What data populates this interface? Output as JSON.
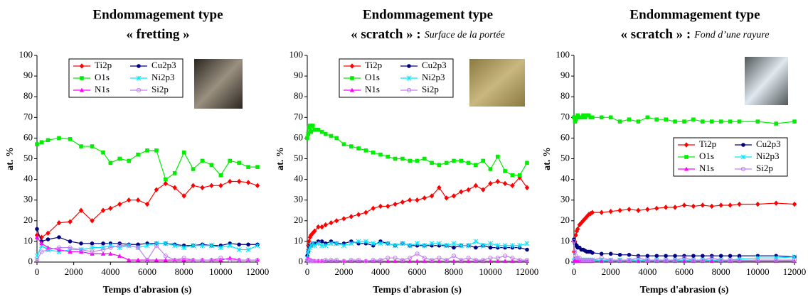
{
  "chart_data": [
    {
      "type": "line",
      "title": "Endommagement type",
      "subtitle": "« fretting »",
      "xlabel": "Temps d'abrasion (s)",
      "ylabel": "at. %",
      "xlim": [
        0,
        12000
      ],
      "ylim": [
        0,
        100
      ],
      "xticks": [
        0,
        2000,
        4000,
        6000,
        8000,
        10000,
        12000
      ],
      "yticks": [
        0,
        10,
        20,
        30,
        40,
        50,
        60,
        70,
        80,
        90,
        100
      ],
      "legend": "upper left",
      "x": [
        0,
        250,
        600,
        1200,
        1800,
        2400,
        3000,
        3600,
        4000,
        4500,
        5000,
        5500,
        6000,
        6500,
        7000,
        7500,
        8000,
        8500,
        9000,
        9500,
        10000,
        10500,
        11000,
        11500,
        12000
      ],
      "series": [
        {
          "name": "Ti2p",
          "color": "#ff0000",
          "marker": "diamond",
          "values": [
            13,
            12,
            14,
            19,
            19.5,
            25,
            20,
            25,
            26,
            28,
            30,
            30,
            28,
            35,
            38,
            36,
            32,
            37,
            36,
            37,
            37,
            39,
            39,
            38.5,
            37
          ]
        },
        {
          "name": "Cu2p3",
          "color": "#000080",
          "marker": "circle",
          "values": [
            16,
            10,
            11,
            12,
            10,
            9,
            9,
            9,
            9,
            9,
            8.5,
            8.5,
            9,
            9,
            9,
            8.5,
            8,
            8,
            8.5,
            8,
            8,
            9,
            8.5,
            8.5,
            8.5
          ]
        },
        {
          "name": "O1s",
          "color": "#00ee00",
          "marker": "square",
          "values": [
            57,
            58,
            59,
            60,
            59.5,
            56,
            56,
            53,
            48,
            50,
            49,
            52,
            54,
            54,
            40,
            43,
            53,
            45,
            49,
            47,
            42,
            49,
            48,
            46,
            46
          ]
        },
        {
          "name": "Ni2p3",
          "color": "#00e5ff",
          "marker": "asterisk",
          "values": [
            3,
            8,
            6,
            5,
            6,
            6,
            7,
            7,
            8,
            7,
            8,
            7,
            8,
            9,
            9,
            8,
            7,
            8,
            8,
            8,
            7,
            8,
            6,
            6,
            8
          ]
        },
        {
          "name": "N1s",
          "color": "#ff00ff",
          "marker": "triangle",
          "values": [
            12,
            9,
            7,
            6,
            5,
            5,
            4,
            4,
            4,
            3,
            1,
            1,
            1,
            1,
            1,
            1,
            1,
            1,
            1,
            1,
            1,
            2,
            1,
            1,
            1
          ]
        },
        {
          "name": "Si2p",
          "color": "#c080f0",
          "marker": "open-circle",
          "values": [
            1,
            5,
            6,
            7,
            7,
            6,
            5,
            6,
            7,
            8,
            8,
            7,
            1,
            8,
            3,
            1,
            2,
            1,
            1,
            1,
            2,
            1,
            1,
            1,
            1
          ]
        }
      ]
    },
    {
      "type": "line",
      "title": "Endommagement type",
      "subtitle": "« scratch » :",
      "subtitle_note": "Surface de la portée",
      "xlabel": "Temps d'abrasion (s)",
      "ylabel": "at. %",
      "xlim": [
        0,
        12000
      ],
      "ylim": [
        0,
        100
      ],
      "xticks": [
        0,
        2000,
        4000,
        6000,
        8000,
        10000,
        12000
      ],
      "yticks": [
        0,
        10,
        20,
        30,
        40,
        50,
        60,
        70,
        80,
        90,
        100
      ],
      "legend": "upper left",
      "x": [
        0,
        50,
        100,
        150,
        200,
        300,
        400,
        600,
        800,
        1000,
        1300,
        1600,
        2000,
        2400,
        2800,
        3200,
        3600,
        4000,
        4400,
        4800,
        5200,
        5600,
        6000,
        6400,
        6800,
        7200,
        7600,
        8000,
        8400,
        8800,
        9200,
        9600,
        10000,
        10400,
        10800,
        11200,
        11600,
        12000
      ],
      "series": [
        {
          "name": "Ti2p",
          "color": "#ff0000",
          "marker": "diamond",
          "values": [
            3,
            8,
            10,
            12,
            13,
            14,
            15,
            17,
            17,
            18,
            19,
            20,
            21,
            22,
            23,
            24,
            26,
            27,
            27,
            28,
            29,
            30,
            30,
            31,
            32,
            36,
            31,
            32,
            34,
            35,
            37,
            35,
            38,
            39,
            38,
            37,
            41,
            36
          ]
        },
        {
          "name": "Cu2p3",
          "color": "#000080",
          "marker": "circle",
          "values": [
            3,
            5,
            7,
            8,
            8,
            9,
            9,
            10,
            10,
            9,
            10,
            9,
            9,
            10,
            9,
            9,
            8,
            10,
            9,
            8,
            9,
            8,
            8,
            8,
            8,
            8,
            8,
            7,
            8,
            8,
            7,
            8,
            7,
            7,
            7,
            7,
            7,
            6
          ]
        },
        {
          "name": "O1s",
          "color": "#00ee00",
          "marker": "square",
          "values": [
            60,
            62,
            65,
            66,
            63,
            66,
            64,
            64,
            63,
            62,
            61,
            60,
            57,
            56,
            55,
            54,
            53,
            52,
            51,
            50,
            50,
            49,
            49,
            50,
            48,
            47,
            48,
            49,
            49,
            48,
            47,
            49,
            45,
            51,
            44,
            42,
            42,
            48
          ]
        },
        {
          "name": "Ni2p3",
          "color": "#00e5ff",
          "marker": "asterisk",
          "values": [
            2,
            5,
            6,
            7,
            8,
            9,
            8,
            9,
            8,
            8,
            9,
            9,
            8,
            9,
            10,
            10,
            9,
            9,
            9,
            8,
            9,
            8,
            9,
            8,
            9,
            9,
            8,
            9,
            8,
            8,
            10,
            8,
            9,
            8,
            8,
            8,
            8,
            9
          ]
        },
        {
          "name": "N1s",
          "color": "#ff00ff",
          "marker": "triangle",
          "values": [
            1,
            2,
            1,
            1,
            1,
            0.5,
            0.5,
            0.5,
            0.5,
            0.5,
            0.5,
            0.5,
            0.5,
            0.5,
            0.5,
            0.5,
            0.5,
            0.5,
            0.5,
            0.5,
            0.5,
            0.5,
            0.5,
            0.5,
            0.5,
            0.5,
            0.5,
            0.5,
            0.5,
            0.5,
            0.5,
            0.5,
            0.5,
            0.5,
            0.5,
            0.5,
            0.5,
            0.5
          ]
        },
        {
          "name": "Si2p",
          "color": "#c080f0",
          "marker": "open-circle",
          "values": [
            1,
            1,
            0.5,
            0.5,
            0.5,
            0.5,
            0.5,
            0.5,
            0.5,
            1,
            1,
            1,
            0.5,
            1,
            1,
            0.5,
            1,
            1,
            2,
            2,
            1,
            2,
            4,
            2,
            1,
            2,
            1,
            3,
            1,
            2,
            1,
            1,
            2,
            2,
            3,
            2,
            1,
            1
          ]
        }
      ]
    },
    {
      "type": "line",
      "title": "Endommagement type",
      "subtitle": "« scratch » :",
      "subtitle_note": "Fond d’une rayure",
      "xlabel": "Temps d'abrasion (s)",
      "ylabel": "at. %",
      "xlim": [
        0,
        12000
      ],
      "ylim": [
        0,
        100
      ],
      "xticks": [
        0,
        2000,
        4000,
        6000,
        8000,
        10000,
        12000
      ],
      "yticks": [
        0,
        10,
        20,
        30,
        40,
        50,
        60,
        70,
        80,
        90,
        100
      ],
      "legend": "center right",
      "x": [
        0,
        50,
        100,
        150,
        200,
        300,
        400,
        500,
        600,
        700,
        800,
        900,
        1000,
        1500,
        2000,
        2500,
        3000,
        3500,
        4000,
        4500,
        5000,
        5500,
        6000,
        6500,
        7000,
        7500,
        8000,
        8500,
        9000,
        10000,
        11000,
        12000
      ],
      "series": [
        {
          "name": "Ti2p",
          "color": "#ff0000",
          "marker": "diamond",
          "values": [
            5,
            10,
            13,
            15,
            16,
            18,
            19,
            20,
            21,
            22,
            23,
            23.5,
            24,
            24,
            24.5,
            25,
            25.5,
            25,
            25.5,
            26,
            26.5,
            26.5,
            27.5,
            27,
            27.5,
            27,
            27.5,
            27.5,
            28,
            28,
            28.5,
            28
          ]
        },
        {
          "name": "Cu2p3",
          "color": "#000080",
          "marker": "circle",
          "values": [
            11,
            9,
            8,
            8,
            7,
            7,
            6,
            6,
            5.5,
            5,
            5,
            5,
            4.5,
            4,
            4,
            3.5,
            3.5,
            3,
            3,
            3,
            3,
            3,
            3,
            3,
            3,
            3,
            3,
            3,
            3,
            3,
            3,
            2.5
          ]
        },
        {
          "name": "O1s",
          "color": "#00ee00",
          "marker": "square",
          "values": [
            70,
            68,
            69,
            70,
            71,
            70,
            70,
            71,
            70,
            71,
            71,
            70,
            70,
            70,
            70,
            68,
            69,
            68,
            70,
            69,
            69,
            68,
            68,
            69,
            68,
            68,
            68,
            68,
            68,
            68,
            67,
            68
          ]
        },
        {
          "name": "Ni2p3",
          "color": "#00e5ff",
          "marker": "asterisk",
          "values": [
            0.5,
            1,
            1,
            1,
            1,
            1,
            1,
            1,
            1,
            1,
            1,
            1,
            1,
            1,
            1,
            1,
            1,
            1,
            1,
            1,
            1,
            1,
            1,
            1,
            1,
            1,
            1,
            1,
            1.5,
            2,
            2,
            2.5
          ]
        },
        {
          "name": "N1s",
          "color": "#ff00ff",
          "marker": "triangle",
          "values": [
            0.5,
            0.5,
            0.5,
            0.5,
            0.5,
            0.5,
            0.5,
            0.5,
            0.5,
            0.5,
            0.5,
            0.5,
            0.5,
            0.5,
            0.5,
            0.5,
            0.5,
            0.5,
            0.5,
            0.5,
            0.5,
            0.5,
            0.5,
            0.5,
            0.5,
            0.5,
            0.5,
            0.5,
            0.5,
            0.5,
            0.5,
            0.5
          ]
        },
        {
          "name": "Si2p",
          "color": "#c080f0",
          "marker": "open-circle",
          "values": [
            10,
            5,
            3,
            2,
            2,
            2,
            1,
            1,
            1,
            1,
            1,
            1,
            1,
            2,
            1,
            1,
            1,
            2,
            1,
            1,
            1,
            1,
            2,
            1,
            1,
            2,
            1,
            1,
            1,
            1,
            1,
            1
          ]
        }
      ]
    }
  ]
}
